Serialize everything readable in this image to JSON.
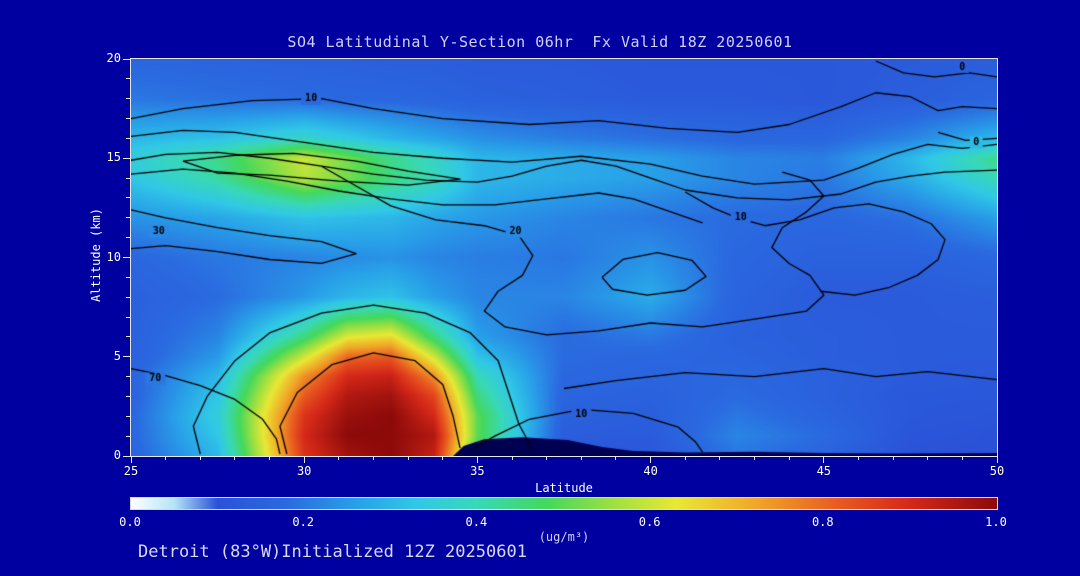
{
  "title": "SO4 Latitudinal Y-Section 06hr  Fx Valid 18Z 20250601",
  "footer": "Detroit (83°W)Initialized 12Z 20250601",
  "colors": {
    "background": "#0000a0",
    "title_text": "#d0d0ff",
    "axis_text": "#ffffff",
    "footer_text": "#d8d8ff",
    "terrain": "#000052",
    "contour_line": "#000000",
    "plot_border": "#e8e8e8"
  },
  "axes": {
    "x_label": "Latitude",
    "y_label": "Altitude (km)",
    "x_ticks": [
      25,
      30,
      35,
      40,
      45,
      50
    ],
    "y_ticks": [
      0,
      5,
      10,
      15,
      20
    ],
    "x_range": [
      25,
      50
    ],
    "y_range": [
      0,
      20
    ]
  },
  "colorbar": {
    "labels": [
      "0.0",
      "0.2",
      "0.4",
      "0.6",
      "0.8",
      "1.0"
    ],
    "range": [
      0.0,
      1.0
    ],
    "units": "(ug/m³)"
  },
  "chart_data": {
    "type": "heatmap",
    "title": "SO4 Latitudinal Y-Section 06hr  Fx Valid 18Z 20250601",
    "xlabel": "Latitude",
    "ylabel": "Altitude (km)",
    "xlim": [
      25,
      50
    ],
    "ylim": [
      0,
      20
    ],
    "value_range": [
      0.0,
      1.0
    ],
    "x": [
      25,
      27.5,
      30,
      31.25,
      32.5,
      33.75,
      35,
      37.5,
      40,
      42.5,
      45,
      47.5,
      50
    ],
    "y": [
      0,
      1,
      2,
      3,
      4,
      5,
      6,
      8,
      10,
      12,
      14,
      15,
      16,
      18,
      20
    ],
    "values": [
      [
        0.16,
        0.3,
        0.88,
        0.97,
        1.0,
        0.92,
        0.45,
        0.1,
        0.12,
        0.2,
        0.16,
        0.1,
        0.1
      ],
      [
        0.17,
        0.33,
        0.9,
        1.0,
        1.0,
        0.95,
        0.5,
        0.14,
        0.13,
        0.22,
        0.18,
        0.11,
        0.1
      ],
      [
        0.17,
        0.35,
        0.88,
        0.98,
        1.0,
        0.9,
        0.5,
        0.15,
        0.14,
        0.2,
        0.16,
        0.12,
        0.11
      ],
      [
        0.16,
        0.33,
        0.82,
        0.95,
        0.97,
        0.85,
        0.45,
        0.16,
        0.15,
        0.18,
        0.15,
        0.12,
        0.12
      ],
      [
        0.16,
        0.3,
        0.75,
        0.9,
        0.92,
        0.75,
        0.4,
        0.17,
        0.16,
        0.17,
        0.15,
        0.13,
        0.12
      ],
      [
        0.15,
        0.25,
        0.6,
        0.8,
        0.82,
        0.6,
        0.32,
        0.18,
        0.17,
        0.16,
        0.14,
        0.13,
        0.13
      ],
      [
        0.15,
        0.22,
        0.45,
        0.62,
        0.65,
        0.45,
        0.26,
        0.18,
        0.2,
        0.15,
        0.14,
        0.13,
        0.13
      ],
      [
        0.15,
        0.18,
        0.25,
        0.3,
        0.32,
        0.26,
        0.22,
        0.22,
        0.28,
        0.16,
        0.13,
        0.13,
        0.14
      ],
      [
        0.17,
        0.2,
        0.22,
        0.23,
        0.24,
        0.22,
        0.21,
        0.2,
        0.24,
        0.17,
        0.15,
        0.15,
        0.17
      ],
      [
        0.24,
        0.27,
        0.32,
        0.31,
        0.3,
        0.27,
        0.25,
        0.22,
        0.2,
        0.18,
        0.17,
        0.19,
        0.26
      ],
      [
        0.33,
        0.42,
        0.58,
        0.52,
        0.45,
        0.4,
        0.3,
        0.28,
        0.26,
        0.22,
        0.2,
        0.28,
        0.4
      ],
      [
        0.35,
        0.44,
        0.6,
        0.52,
        0.44,
        0.38,
        0.3,
        0.28,
        0.26,
        0.22,
        0.21,
        0.3,
        0.44
      ],
      [
        0.3,
        0.32,
        0.38,
        0.34,
        0.3,
        0.27,
        0.24,
        0.21,
        0.19,
        0.17,
        0.17,
        0.22,
        0.3
      ],
      [
        0.2,
        0.19,
        0.18,
        0.17,
        0.17,
        0.16,
        0.15,
        0.14,
        0.13,
        0.13,
        0.12,
        0.14,
        0.16
      ],
      [
        0.17,
        0.16,
        0.15,
        0.15,
        0.14,
        0.14,
        0.13,
        0.13,
        0.12,
        0.12,
        0.12,
        0.13,
        0.14
      ]
    ],
    "colormap_stops": [
      [
        0.0,
        "#ffffff"
      ],
      [
        0.05,
        "#b4e4f6"
      ],
      [
        0.1,
        "#2a52d8"
      ],
      [
        0.18,
        "#2a6ae0"
      ],
      [
        0.26,
        "#28a0e8"
      ],
      [
        0.33,
        "#30c8e6"
      ],
      [
        0.4,
        "#38d8b8"
      ],
      [
        0.48,
        "#44d85c"
      ],
      [
        0.56,
        "#a2e040"
      ],
      [
        0.63,
        "#e8e834"
      ],
      [
        0.72,
        "#f0a828"
      ],
      [
        0.82,
        "#e85820"
      ],
      [
        0.9,
        "#d42818"
      ],
      [
        1.0,
        "#8c0a0a"
      ]
    ],
    "terrain": [
      [
        34.3,
        0
      ],
      [
        34.6,
        0.5
      ],
      [
        35.2,
        0.85
      ],
      [
        36.3,
        0.95
      ],
      [
        37.6,
        0.8
      ],
      [
        38.6,
        0.45
      ],
      [
        39.5,
        0.25
      ],
      [
        41,
        0.18
      ],
      [
        43,
        0.22
      ],
      [
        45,
        0.15
      ],
      [
        47,
        0.12
      ],
      [
        50,
        0.15
      ],
      [
        50,
        0
      ]
    ],
    "contour_labels_visible": [
      "10",
      "0",
      "0",
      "30",
      "20",
      "10",
      "70",
      "10"
    ],
    "contours": [
      {
        "label": "10",
        "label_at": [
          30.2,
          18.0
        ],
        "points": [
          [
            25,
            17.0
          ],
          [
            26.5,
            17.5
          ],
          [
            28.5,
            17.9
          ],
          [
            30.5,
            18.0
          ],
          [
            32,
            17.5
          ],
          [
            34,
            17.0
          ],
          [
            36.5,
            16.7
          ],
          [
            38.5,
            16.9
          ],
          [
            40.5,
            16.5
          ],
          [
            42.5,
            16.3
          ],
          [
            44,
            16.7
          ],
          [
            45.5,
            17.6
          ],
          [
            46.5,
            18.3
          ],
          [
            47.5,
            18.1
          ],
          [
            48.3,
            17.4
          ],
          [
            49,
            17.6
          ],
          [
            50,
            17.5
          ]
        ]
      },
      {
        "label": "0",
        "label_at": [
          49.0,
          19.6
        ],
        "points": [
          [
            46.5,
            19.9
          ],
          [
            47.3,
            19.3
          ],
          [
            48.2,
            19.1
          ],
          [
            49.2,
            19.3
          ],
          [
            50,
            19.1
          ]
        ]
      },
      {
        "points": [
          [
            25,
            16.1
          ],
          [
            26.5,
            16.4
          ],
          [
            28,
            16.3
          ],
          [
            30,
            15.8
          ],
          [
            32,
            15.3
          ],
          [
            34,
            15.0
          ],
          [
            36,
            14.8
          ],
          [
            38,
            15.1
          ],
          [
            40,
            14.7
          ],
          [
            41.5,
            14.1
          ],
          [
            43,
            13.7
          ],
          [
            45,
            13.9
          ],
          [
            46,
            14.5
          ],
          [
            47,
            15.2
          ],
          [
            48,
            15.7
          ],
          [
            49,
            15.5
          ],
          [
            50,
            15.7
          ]
        ]
      },
      {
        "label": "0",
        "label_at": [
          49.4,
          15.8
        ],
        "points": [
          [
            48.3,
            16.3
          ],
          [
            49.1,
            15.9
          ],
          [
            50,
            16.0
          ]
        ]
      },
      {
        "points": [
          [
            25,
            14.9
          ],
          [
            26,
            15.2
          ],
          [
            27.5,
            15.3
          ],
          [
            29,
            15.0
          ],
          [
            30.5,
            14.6
          ],
          [
            32,
            14.2
          ],
          [
            33.5,
            13.9
          ],
          [
            35,
            13.8
          ],
          [
            36,
            14.1
          ],
          [
            37,
            14.6
          ],
          [
            38,
            14.9
          ],
          [
            39,
            14.6
          ],
          [
            40,
            14.0
          ],
          [
            41,
            13.4
          ],
          [
            42.5,
            13.0
          ],
          [
            44,
            12.9
          ],
          [
            45.5,
            13.2
          ],
          [
            46.5,
            13.8
          ],
          [
            47.5,
            14.1
          ],
          [
            48.5,
            14.3
          ],
          [
            50,
            14.4
          ]
        ]
      },
      {
        "points": [
          [
            25,
            14.2
          ],
          [
            26.5,
            14.45
          ],
          [
            28,
            14.25
          ],
          [
            29.5,
            13.85
          ],
          [
            31,
            13.35
          ],
          [
            32.5,
            12.95
          ],
          [
            34,
            12.65
          ],
          [
            35.5,
            12.65
          ],
          [
            37,
            12.95
          ],
          [
            38.5,
            13.25
          ],
          [
            39.5,
            12.95
          ],
          [
            40.5,
            12.35
          ],
          [
            41.5,
            11.75
          ]
        ]
      },
      {
        "points": [
          [
            26.5,
            14.85
          ],
          [
            28,
            15.15
          ],
          [
            29.7,
            15.25
          ],
          [
            31.5,
            14.85
          ],
          [
            33,
            14.35
          ],
          [
            34.5,
            13.95
          ],
          [
            33,
            13.65
          ],
          [
            31,
            13.85
          ],
          [
            29,
            14.15
          ],
          [
            27.5,
            14.25
          ],
          [
            26.5,
            14.85
          ]
        ]
      },
      {
        "label": "30",
        "label_at": [
          25.8,
          11.3
        ],
        "points": [
          [
            25,
            12.4
          ],
          [
            26,
            12.0
          ],
          [
            27.5,
            11.5
          ],
          [
            29,
            11.1
          ],
          [
            30.5,
            10.8
          ],
          [
            31.5,
            10.2
          ],
          [
            30.5,
            9.7
          ],
          [
            29,
            9.9
          ],
          [
            27.5,
            10.3
          ],
          [
            26,
            10.6
          ],
          [
            25,
            10.45
          ]
        ]
      },
      {
        "label": "20",
        "label_at": [
          36.1,
          11.3
        ],
        "points": [
          [
            30.5,
            14.6
          ],
          [
            31.5,
            13.6
          ],
          [
            32.5,
            12.6
          ],
          [
            33.8,
            11.9
          ],
          [
            35.2,
            11.6
          ],
          [
            36.2,
            11.1
          ],
          [
            36.6,
            10.1
          ],
          [
            36.3,
            9.1
          ],
          [
            35.6,
            8.3
          ],
          [
            35.2,
            7.3
          ],
          [
            35.8,
            6.5
          ],
          [
            37,
            6.1
          ],
          [
            38.5,
            6.3
          ],
          [
            40,
            6.7
          ],
          [
            41.5,
            6.5
          ],
          [
            43,
            6.9
          ],
          [
            44.5,
            7.3
          ],
          [
            45,
            8.1
          ],
          [
            44.6,
            9.1
          ],
          [
            44,
            9.7
          ],
          [
            43.5,
            10.5
          ],
          [
            43.8,
            11.5
          ],
          [
            44.5,
            12.3
          ],
          [
            45,
            13.1
          ],
          [
            44.6,
            13.9
          ],
          [
            43.8,
            14.3
          ]
        ]
      },
      {
        "label": "10",
        "label_at": [
          42.6,
          12.0
        ],
        "points": [
          [
            41,
            13.3
          ],
          [
            41.8,
            12.5
          ],
          [
            42.5,
            12.0
          ],
          [
            43.3,
            11.6
          ],
          [
            44.3,
            11.9
          ],
          [
            45.3,
            12.5
          ],
          [
            46.3,
            12.7
          ],
          [
            47.3,
            12.3
          ],
          [
            48.1,
            11.7
          ],
          [
            48.5,
            10.9
          ],
          [
            48.3,
            9.9
          ],
          [
            47.7,
            9.1
          ],
          [
            46.9,
            8.5
          ],
          [
            45.9,
            8.1
          ],
          [
            44.9,
            8.3
          ]
        ]
      },
      {
        "points": [
          [
            38.6,
            9.0
          ],
          [
            39.2,
            9.9
          ],
          [
            40.2,
            10.25
          ],
          [
            41.2,
            9.85
          ],
          [
            41.6,
            9.05
          ],
          [
            41.0,
            8.35
          ],
          [
            39.9,
            8.1
          ],
          [
            38.9,
            8.4
          ],
          [
            38.6,
            9.0
          ]
        ]
      },
      {
        "points": [
          [
            27.0,
            0.1
          ],
          [
            26.8,
            1.5
          ],
          [
            27.2,
            3.0
          ],
          [
            28.0,
            4.8
          ],
          [
            29.0,
            6.2
          ],
          [
            30.5,
            7.2
          ],
          [
            32,
            7.6
          ],
          [
            33.5,
            7.2
          ],
          [
            34.8,
            6.2
          ],
          [
            35.6,
            4.8
          ],
          [
            35.9,
            3.2
          ],
          [
            36.2,
            1.6
          ],
          [
            36.6,
            0.3
          ]
        ]
      },
      {
        "label": "70",
        "label_at": [
          25.7,
          3.9
        ],
        "points": [
          [
            25,
            4.4
          ],
          [
            26,
            4.05
          ],
          [
            27,
            3.55
          ],
          [
            28,
            2.85
          ],
          [
            28.8,
            1.85
          ],
          [
            29.2,
            0.85
          ],
          [
            29.3,
            0.1
          ]
        ]
      },
      {
        "points": [
          [
            29.5,
            0.1
          ],
          [
            29.3,
            1.5
          ],
          [
            29.8,
            3.2
          ],
          [
            30.8,
            4.6
          ],
          [
            32,
            5.2
          ],
          [
            33.2,
            4.8
          ],
          [
            34.0,
            3.6
          ],
          [
            34.3,
            2.0
          ],
          [
            34.5,
            0.4
          ]
        ]
      },
      {
        "label": "10",
        "label_at": [
          38.0,
          2.1
        ],
        "points": [
          [
            34.8,
            0.3
          ],
          [
            35.5,
            1.0
          ],
          [
            36.5,
            1.85
          ],
          [
            38,
            2.35
          ],
          [
            39.5,
            2.15
          ],
          [
            40.8,
            1.45
          ],
          [
            41.3,
            0.7
          ],
          [
            41.5,
            0.2
          ]
        ]
      },
      {
        "points": [
          [
            37.5,
            3.4
          ],
          [
            39,
            3.8
          ],
          [
            41,
            4.2
          ],
          [
            43,
            4.0
          ],
          [
            45,
            4.4
          ],
          [
            46.5,
            4.0
          ],
          [
            48,
            4.25
          ],
          [
            50,
            3.85
          ]
        ]
      }
    ]
  }
}
